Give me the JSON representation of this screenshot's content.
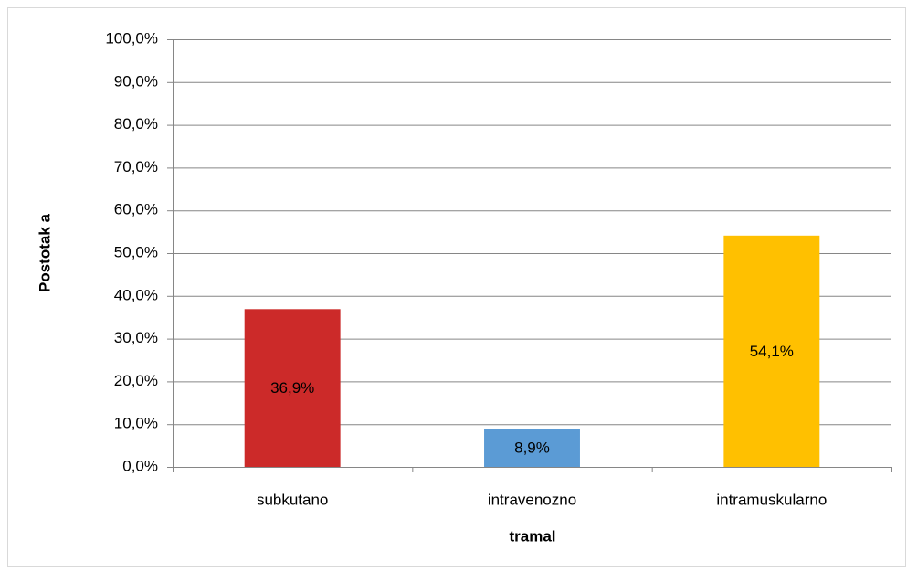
{
  "chart_data": {
    "type": "bar",
    "categories": [
      "subkutano",
      "intravenozno",
      "intramuskularno"
    ],
    "values": [
      36.9,
      8.9,
      54.1
    ],
    "value_labels": [
      "36,9%",
      "8,9%",
      "54,1%"
    ],
    "colors": [
      "#cc2a29",
      "#5b9bd5",
      "#ffc000"
    ],
    "x_label": "tramal",
    "y_label": "Postotak a",
    "ylim": [
      0,
      100
    ],
    "yticks": [
      {
        "value": 0,
        "label": "0,0%"
      },
      {
        "value": 10,
        "label": "10,0%"
      },
      {
        "value": 20,
        "label": "20,0%"
      },
      {
        "value": 30,
        "label": "30,0%"
      },
      {
        "value": 40,
        "label": "40,0%"
      },
      {
        "value": 50,
        "label": "50,0%"
      },
      {
        "value": 60,
        "label": "60,0%"
      },
      {
        "value": 70,
        "label": "70,0%"
      },
      {
        "value": 80,
        "label": "80,0%"
      },
      {
        "value": 90,
        "label": "90,0%"
      },
      {
        "value": 100,
        "label": "100,0%"
      }
    ],
    "grid": true
  }
}
